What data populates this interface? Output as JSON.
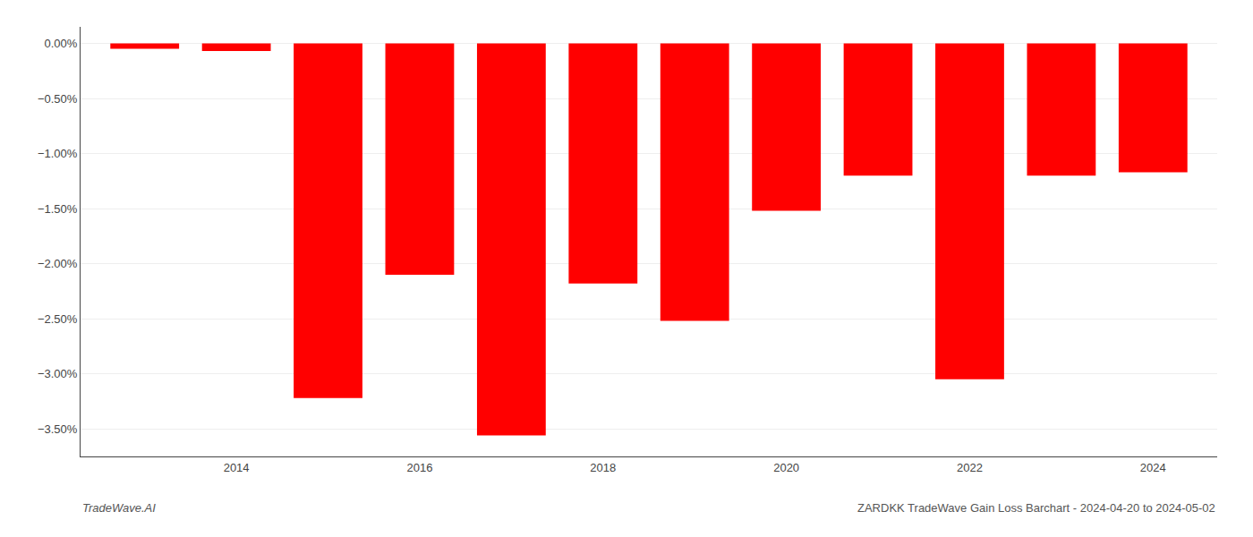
{
  "chart_data": {
    "type": "bar",
    "x": [
      2013,
      2014,
      2015,
      2016,
      2017,
      2018,
      2019,
      2020,
      2021,
      2022,
      2023,
      2024
    ],
    "values": [
      -0.05,
      -0.07,
      -3.22,
      -2.1,
      -3.56,
      -2.18,
      -2.52,
      -1.52,
      -1.2,
      -3.05,
      -1.2,
      -1.17
    ],
    "color": "#ff0000",
    "xlim": [
      2012.3,
      2024.7
    ],
    "xticks": [
      2014,
      2016,
      2018,
      2020,
      2022,
      2024
    ],
    "ylim": [
      -3.75,
      0.15
    ],
    "yticks": [
      {
        "value": 0.0,
        "label": "0.00%"
      },
      {
        "value": -0.5,
        "label": "−0.50%"
      },
      {
        "value": -1.0,
        "label": "−1.00%"
      },
      {
        "value": -1.5,
        "label": "−1.50%"
      },
      {
        "value": -2.0,
        "label": "−2.00%"
      },
      {
        "value": -2.5,
        "label": "−2.50%"
      },
      {
        "value": -3.0,
        "label": "−3.00%"
      },
      {
        "value": -3.5,
        "label": "−3.50%"
      }
    ],
    "grid": true,
    "annotations": [
      "TradeWave.AI",
      "ZARDKK TradeWave Gain Loss Barchart - 2024-04-20 to 2024-05-02"
    ]
  }
}
